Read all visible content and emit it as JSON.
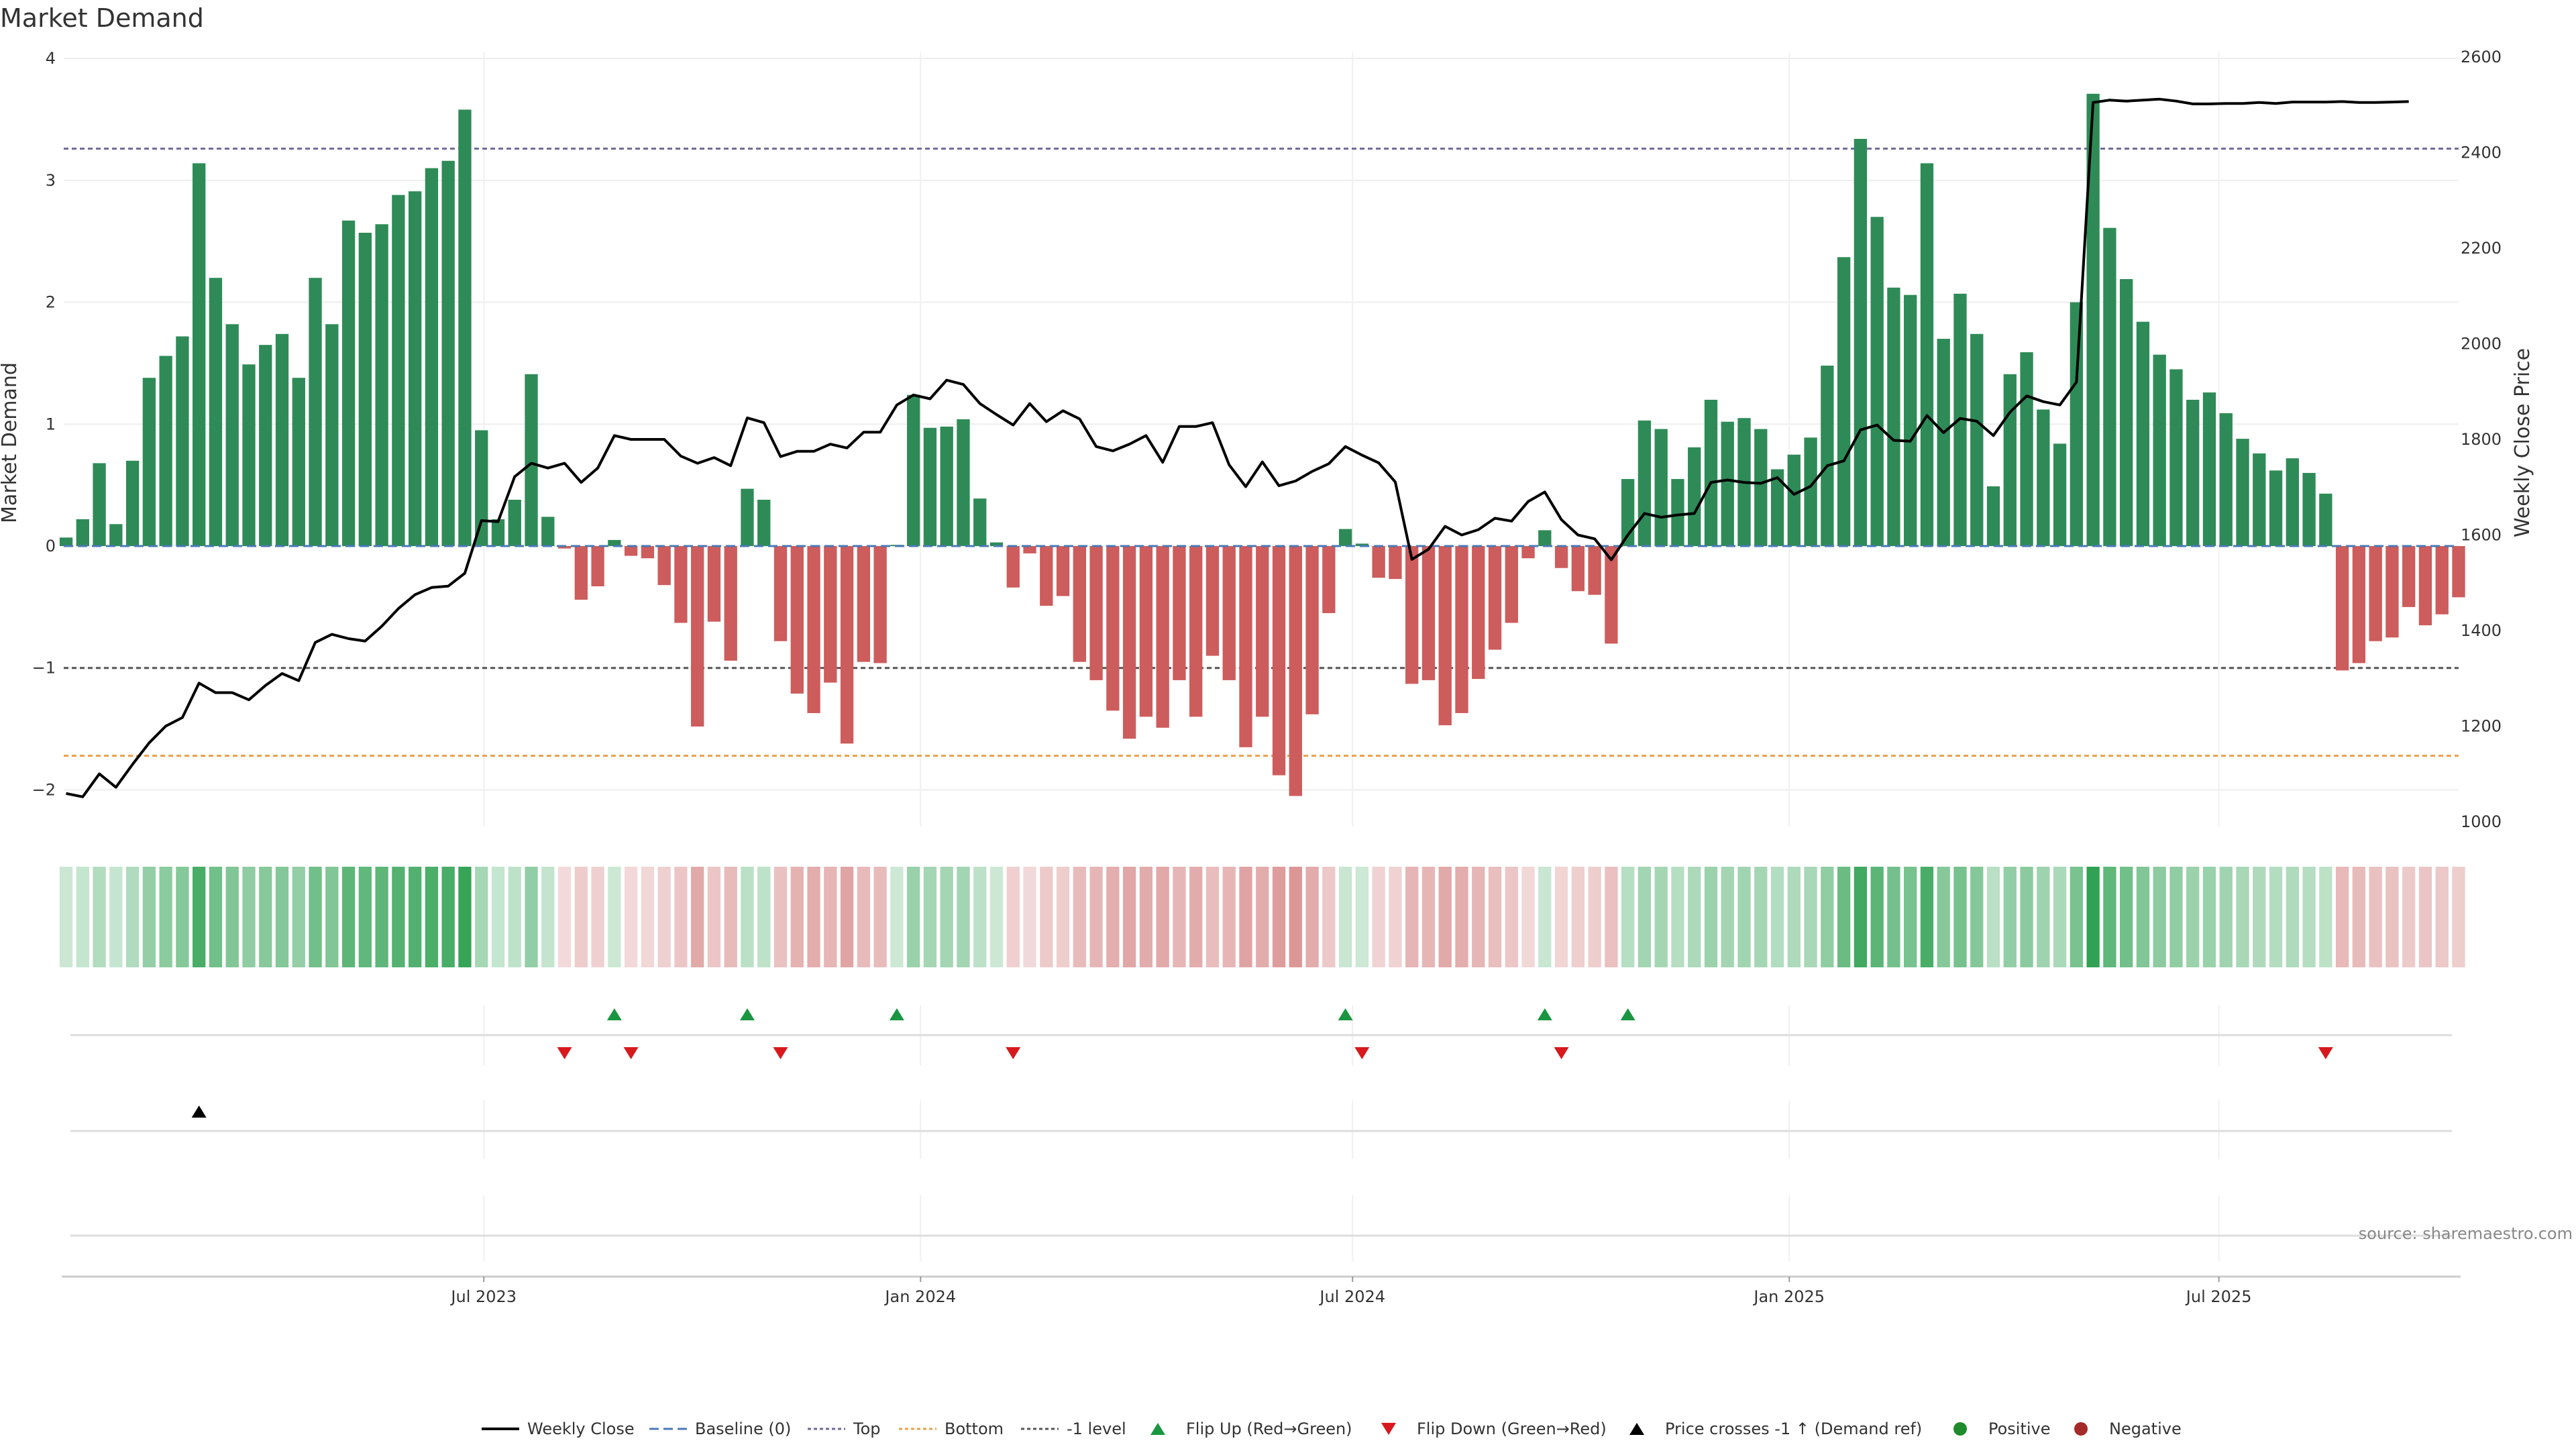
{
  "chart_data": {
    "type": "bar",
    "title": "Market Demand",
    "ylabel": "Market Demand",
    "y2label": "Weekly Close Price",
    "ylim": [
      -2.3,
      4.05
    ],
    "y2lim": [
      990,
      2610
    ],
    "yticks": [
      -2,
      -1,
      0,
      1,
      2,
      3,
      4
    ],
    "ytick_labels": [
      "−2",
      "−1",
      "0",
      "1",
      "2",
      "3",
      "4"
    ],
    "y2ticks": [
      1000,
      1200,
      1400,
      1600,
      1800,
      2000,
      2200,
      2400,
      2600
    ],
    "x_start": "2023-01-06",
    "x_step_days": 7,
    "x_range": [
      "2023-01-05",
      "2025-10-10"
    ],
    "x_tick_dates": [
      "2023-07-01",
      "2024-01-01",
      "2024-07-01",
      "2025-01-01",
      "2025-07-01"
    ],
    "x_tick_labels": [
      "Jul 2023",
      "Jan 2024",
      "Jul 2024",
      "Jan 2025",
      "Jul 2025"
    ],
    "demand": [
      0.07,
      0.22,
      0.68,
      0.18,
      0.7,
      1.38,
      1.56,
      1.72,
      3.14,
      2.2,
      1.82,
      1.49,
      1.65,
      1.74,
      1.38,
      2.2,
      1.82,
      2.67,
      2.57,
      2.64,
      2.88,
      2.91,
      3.1,
      3.16,
      3.58,
      0.95,
      0.22,
      0.38,
      1.41,
      0.24,
      -0.02,
      -0.44,
      -0.33,
      0.05,
      -0.08,
      -0.1,
      -0.32,
      -0.63,
      -1.48,
      -0.62,
      -0.94,
      0.47,
      0.38,
      -0.78,
      -1.21,
      -1.37,
      -1.12,
      -1.62,
      -0.95,
      -0.96,
      0.01,
      1.24,
      0.97,
      0.98,
      1.04,
      0.39,
      0.03,
      -0.34,
      -0.06,
      -0.49,
      -0.41,
      -0.95,
      -1.1,
      -1.35,
      -1.58,
      -1.4,
      -1.49,
      -1.1,
      -1.4,
      -0.9,
      -1.1,
      -1.65,
      -1.4,
      -1.88,
      -2.05,
      -1.38,
      -0.55,
      0.14,
      0.02,
      -0.26,
      -0.27,
      -1.13,
      -1.1,
      -1.47,
      -1.37,
      -1.09,
      -0.85,
      -0.63,
      -0.1,
      0.13,
      -0.18,
      -0.37,
      -0.4,
      -0.8,
      0.55,
      1.03,
      0.96,
      0.55,
      0.81,
      1.2,
      1.02,
      1.05,
      0.96,
      0.63,
      0.75,
      0.89,
      1.48,
      2.37,
      3.34,
      2.7,
      2.12,
      2.06,
      3.14,
      1.7,
      2.07,
      1.74,
      0.49,
      1.41,
      1.59,
      1.12,
      0.84,
      2.0,
      3.71,
      2.61,
      2.19,
      1.84,
      1.57,
      1.45,
      1.2,
      1.26,
      1.09,
      0.88,
      0.76,
      0.62,
      0.72,
      0.6,
      0.43,
      -1.02,
      -0.96,
      -0.78,
      -0.75,
      -0.5,
      -0.65,
      -0.56,
      -0.42
    ],
    "price": [
      1059,
      1052,
      1100,
      1072,
      1120,
      1165,
      1200,
      1218,
      1290,
      1270,
      1270,
      1255,
      1285,
      1310,
      1295,
      1375,
      1392,
      1383,
      1378,
      1409,
      1446,
      1475,
      1490,
      1493,
      1520,
      1630,
      1628,
      1722,
      1750,
      1740,
      1750,
      1710,
      1740,
      1808,
      1800,
      1800,
      1800,
      1765,
      1750,
      1762,
      1745,
      1845,
      1835,
      1764,
      1775,
      1775,
      1790,
      1782,
      1815,
      1815,
      1872,
      1893,
      1885,
      1924,
      1915,
      1875,
      1852,
      1830,
      1875,
      1837,
      1860,
      1843,
      1785,
      1776,
      1790,
      1808,
      1752,
      1827,
      1827,
      1835,
      1747,
      1701,
      1753,
      1703,
      1713,
      1733,
      1749,
      1785,
      1767,
      1751,
      1711,
      1549,
      1570,
      1618,
      1600,
      1611,
      1635,
      1629,
      1670,
      1690,
      1632,
      1600,
      1592,
      1548,
      1600,
      1645,
      1637,
      1642,
      1645,
      1710,
      1715,
      1710,
      1708,
      1720,
      1685,
      1702,
      1745,
      1755,
      1820,
      1830,
      1798,
      1796,
      1850,
      1814,
      1844,
      1838,
      1808,
      1857,
      1891,
      1879,
      1872,
      1920,
      2505,
      2510,
      2508,
      2510,
      2512,
      2508,
      2502,
      2502,
      2503,
      2503,
      2505,
      2503,
      2506,
      2506,
      2506,
      2507,
      2505,
      2505,
      2506,
      2507
    ],
    "lines": {
      "top": 3.26,
      "bottom": -1.72,
      "minus_one": -1.0,
      "baseline": 0
    },
    "flip_up_indices": [
      33,
      41,
      50,
      77,
      89,
      94
    ],
    "flip_down_indices": [
      30,
      34,
      43,
      57,
      78,
      90,
      136
    ],
    "price_cross_indices": [
      8
    ],
    "legend": [
      "Weekly Close",
      "Baseline (0)",
      "Top",
      "Bottom",
      "-1 level",
      "Flip Up (Red→Green)",
      "Flip Down (Green→Red)",
      "Price crosses -1 ↑ (Demand ref)",
      "Positive",
      "Negative"
    ],
    "source": "source: sharemaestro.com"
  },
  "colors": {
    "positive": "#2e8b57",
    "negative": "#cd5c5c",
    "price": "#000000",
    "top": "#6a6a9a",
    "bottom": "#e8a04a",
    "minus_one": "#555555",
    "baseline": "#4a7ab5",
    "flip_up": "#1a9641",
    "flip_down": "#d7191c",
    "positive_dot": "#1f8b2c",
    "negative_dot": "#a52a2a"
  }
}
